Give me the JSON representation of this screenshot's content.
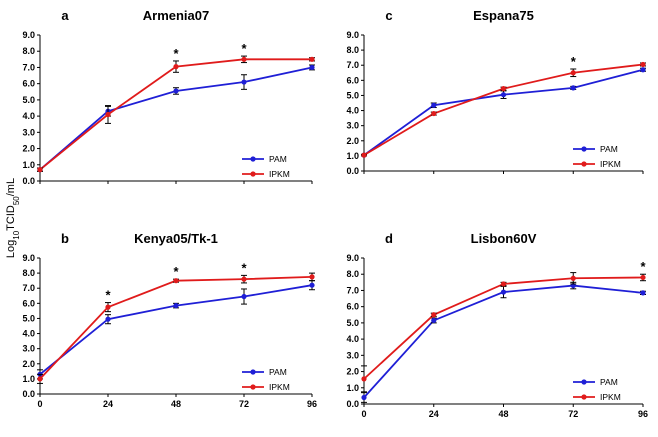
{
  "figure": {
    "ylabel_prefix": "Log",
    "ylabel_sub10": "10",
    "ylabel_mid": "TCID",
    "ylabel_sub50": "50",
    "ylabel_suffix": "/mL"
  },
  "chart_data": [
    {
      "type": "line",
      "panel": "a",
      "title": "Armenia07",
      "x": [
        0,
        24,
        48,
        72,
        96
      ],
      "xtick_labels": [],
      "ylim": [
        0,
        9
      ],
      "yticks": [
        "0.0",
        "1.0",
        "2.0",
        "3.0",
        "4.0",
        "5.0",
        "6.0",
        "7.0",
        "8.0",
        "9.0"
      ],
      "series": [
        {
          "name": "PAM",
          "color": "#1f1fd6",
          "values": [
            0.7,
            4.3,
            5.55,
            6.1,
            7.0
          ],
          "errors": [
            0.1,
            0.3,
            0.2,
            0.45,
            0.15
          ]
        },
        {
          "name": "IPKM",
          "color": "#e01b1b",
          "values": [
            0.7,
            4.1,
            7.05,
            7.5,
            7.5
          ],
          "errors": [
            0.1,
            0.55,
            0.35,
            0.2,
            0.1
          ]
        }
      ],
      "significance": [
        48,
        72
      ],
      "significance_mark": "*"
    },
    {
      "type": "line",
      "panel": "c",
      "title": "Espana75",
      "x": [
        0,
        24,
        48,
        72,
        96
      ],
      "xtick_labels": [],
      "ylim": [
        0,
        9
      ],
      "yticks": [
        "0.0",
        "1.0",
        "2.0",
        "3.0",
        "4.0",
        "5.0",
        "6.0",
        "7.0",
        "8.0",
        "9.0"
      ],
      "series": [
        {
          "name": "PAM",
          "color": "#1f1fd6",
          "values": [
            1.05,
            4.35,
            5.05,
            5.5,
            6.7
          ],
          "errors": [
            0.05,
            0.15,
            0.25,
            0.1,
            0.1
          ]
        },
        {
          "name": "IPKM",
          "color": "#e01b1b",
          "values": [
            1.05,
            3.8,
            5.45,
            6.5,
            7.05
          ],
          "errors": [
            0.05,
            0.1,
            0.1,
            0.25,
            0.1
          ]
        }
      ],
      "significance": [
        72
      ],
      "significance_mark": "*"
    },
    {
      "type": "line",
      "panel": "b",
      "title": "Kenya05/Tk-1",
      "x": [
        0,
        24,
        48,
        72,
        96
      ],
      "xtick_labels": [
        "0",
        "24",
        "48",
        "72",
        "96"
      ],
      "ylim": [
        0,
        9
      ],
      "yticks": [
        "0.0",
        "1.0",
        "2.0",
        "3.0",
        "4.0",
        "5.0",
        "6.0",
        "7.0",
        "8.0",
        "9.0"
      ],
      "series": [
        {
          "name": "PAM",
          "color": "#1f1fd6",
          "values": [
            1.3,
            4.95,
            5.85,
            6.45,
            7.2
          ],
          "errors": [
            0.3,
            0.3,
            0.15,
            0.5,
            0.3
          ]
        },
        {
          "name": "IPKM",
          "color": "#e01b1b",
          "values": [
            1.0,
            5.75,
            7.5,
            7.6,
            7.75
          ],
          "errors": [
            0.3,
            0.3,
            0.1,
            0.25,
            0.25
          ]
        }
      ],
      "significance": [
        24,
        48,
        72
      ],
      "significance_mark": "*"
    },
    {
      "type": "line",
      "panel": "d",
      "title": "Lisbon60V",
      "x": [
        0,
        24,
        48,
        72,
        96
      ],
      "xtick_labels": [
        "0",
        "24",
        "48",
        "72",
        "96"
      ],
      "ylim": [
        0,
        9
      ],
      "yticks": [
        "0.0",
        "1.0",
        "2.0",
        "3.0",
        "4.0",
        "5.0",
        "6.0",
        "7.0",
        "8.0",
        "9.0"
      ],
      "series": [
        {
          "name": "PAM",
          "color": "#1f1fd6",
          "values": [
            0.4,
            5.15,
            6.9,
            7.3,
            6.85
          ],
          "errors": [
            0.3,
            0.15,
            0.35,
            0.2,
            0.1
          ]
        },
        {
          "name": "IPKM",
          "color": "#e01b1b",
          "values": [
            1.55,
            5.5,
            7.4,
            7.75,
            7.8
          ],
          "errors": [
            0.8,
            0.1,
            0.1,
            0.35,
            0.2
          ]
        }
      ],
      "significance": [
        96
      ],
      "significance_mark": "*"
    }
  ]
}
